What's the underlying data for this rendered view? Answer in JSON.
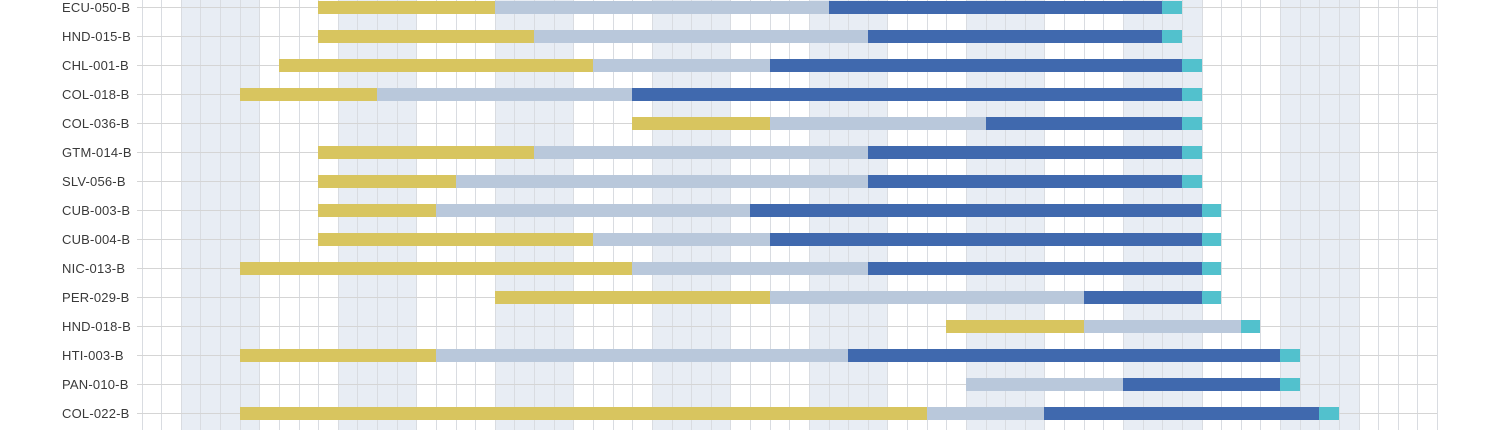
{
  "chart_data": {
    "type": "gantt",
    "title": "",
    "unit": "grid-cell",
    "axis": {
      "total_cells": 66,
      "tick_labels_visible": false,
      "grid": true,
      "shaded_band_start_cells": [
        2,
        10,
        18,
        26,
        34,
        42,
        50,
        58
      ],
      "shaded_band_width_cells": 4
    },
    "phases": [
      {
        "id": "phase-1-yellow",
        "color": "#d8c55f"
      },
      {
        "id": "phase-2-lightblue",
        "color": "#b9c8db"
      },
      {
        "id": "phase-3-darkblue",
        "color": "#4069ae"
      },
      {
        "id": "phase-4-teal",
        "color": "#52c1cd"
      }
    ],
    "rows": [
      {
        "label": "ECU-050-B",
        "segments": [
          {
            "phase": 0,
            "start": 9,
            "end": 18
          },
          {
            "phase": 1,
            "start": 18,
            "end": 35
          },
          {
            "phase": 2,
            "start": 35,
            "end": 52
          },
          {
            "phase": 3,
            "start": 52,
            "end": 53
          }
        ]
      },
      {
        "label": "HND-015-B",
        "segments": [
          {
            "phase": 0,
            "start": 9,
            "end": 20
          },
          {
            "phase": 1,
            "start": 20,
            "end": 37
          },
          {
            "phase": 2,
            "start": 37,
            "end": 52
          },
          {
            "phase": 3,
            "start": 52,
            "end": 53
          }
        ]
      },
      {
        "label": "CHL-001-B",
        "segments": [
          {
            "phase": 0,
            "start": 7,
            "end": 23
          },
          {
            "phase": 1,
            "start": 23,
            "end": 32
          },
          {
            "phase": 2,
            "start": 32,
            "end": 53
          },
          {
            "phase": 3,
            "start": 53,
            "end": 54
          }
        ]
      },
      {
        "label": "COL-018-B",
        "segments": [
          {
            "phase": 0,
            "start": 5,
            "end": 12
          },
          {
            "phase": 1,
            "start": 12,
            "end": 25
          },
          {
            "phase": 2,
            "start": 25,
            "end": 53
          },
          {
            "phase": 3,
            "start": 53,
            "end": 54
          }
        ]
      },
      {
        "label": "COL-036-B",
        "segments": [
          {
            "phase": 0,
            "start": 25,
            "end": 32
          },
          {
            "phase": 1,
            "start": 32,
            "end": 43
          },
          {
            "phase": 2,
            "start": 43,
            "end": 53
          },
          {
            "phase": 3,
            "start": 53,
            "end": 54
          }
        ]
      },
      {
        "label": "GTM-014-B",
        "segments": [
          {
            "phase": 0,
            "start": 9,
            "end": 20
          },
          {
            "phase": 1,
            "start": 20,
            "end": 37
          },
          {
            "phase": 2,
            "start": 37,
            "end": 53
          },
          {
            "phase": 3,
            "start": 53,
            "end": 54
          }
        ]
      },
      {
        "label": "SLV-056-B",
        "segments": [
          {
            "phase": 0,
            "start": 9,
            "end": 16
          },
          {
            "phase": 1,
            "start": 16,
            "end": 37
          },
          {
            "phase": 2,
            "start": 37,
            "end": 53
          },
          {
            "phase": 3,
            "start": 53,
            "end": 54
          }
        ]
      },
      {
        "label": "CUB-003-B",
        "segments": [
          {
            "phase": 0,
            "start": 9,
            "end": 15
          },
          {
            "phase": 1,
            "start": 15,
            "end": 31
          },
          {
            "phase": 2,
            "start": 31,
            "end": 54
          },
          {
            "phase": 3,
            "start": 54,
            "end": 55
          }
        ]
      },
      {
        "label": "CUB-004-B",
        "segments": [
          {
            "phase": 0,
            "start": 9,
            "end": 23
          },
          {
            "phase": 1,
            "start": 23,
            "end": 32
          },
          {
            "phase": 2,
            "start": 32,
            "end": 54
          },
          {
            "phase": 3,
            "start": 54,
            "end": 55
          }
        ]
      },
      {
        "label": "NIC-013-B",
        "segments": [
          {
            "phase": 0,
            "start": 5,
            "end": 25
          },
          {
            "phase": 1,
            "start": 25,
            "end": 37
          },
          {
            "phase": 2,
            "start": 37,
            "end": 54
          },
          {
            "phase": 3,
            "start": 54,
            "end": 55
          }
        ]
      },
      {
        "label": "PER-029-B",
        "segments": [
          {
            "phase": 0,
            "start": 18,
            "end": 32
          },
          {
            "phase": 1,
            "start": 32,
            "end": 48
          },
          {
            "phase": 2,
            "start": 48,
            "end": 54
          },
          {
            "phase": 3,
            "start": 54,
            "end": 55
          }
        ]
      },
      {
        "label": "HND-018-B",
        "segments": [
          {
            "phase": 0,
            "start": 41,
            "end": 48
          },
          {
            "phase": 1,
            "start": 48,
            "end": 56
          },
          {
            "phase": 3,
            "start": 56,
            "end": 57
          }
        ]
      },
      {
        "label": "HTI-003-B",
        "segments": [
          {
            "phase": 0,
            "start": 5,
            "end": 15
          },
          {
            "phase": 1,
            "start": 15,
            "end": 36
          },
          {
            "phase": 2,
            "start": 36,
            "end": 58
          },
          {
            "phase": 3,
            "start": 58,
            "end": 59
          }
        ]
      },
      {
        "label": "PAN-010-B",
        "segments": [
          {
            "phase": 1,
            "start": 42,
            "end": 50
          },
          {
            "phase": 2,
            "start": 50,
            "end": 58
          },
          {
            "phase": 3,
            "start": 58,
            "end": 59
          }
        ]
      },
      {
        "label": "COL-022-B",
        "segments": [
          {
            "phase": 0,
            "start": 5,
            "end": 40
          },
          {
            "phase": 1,
            "start": 40,
            "end": 46
          },
          {
            "phase": 2,
            "start": 46,
            "end": 60
          },
          {
            "phase": 3,
            "start": 60,
            "end": 61
          }
        ]
      }
    ]
  },
  "colors": {
    "background": "#ffffff",
    "shaded_band": "#e8edf4",
    "vertical_gridline": "#d9dce1",
    "horizontal_leader_line": "#d5d5d5",
    "label_text": "#3a3a3a"
  }
}
